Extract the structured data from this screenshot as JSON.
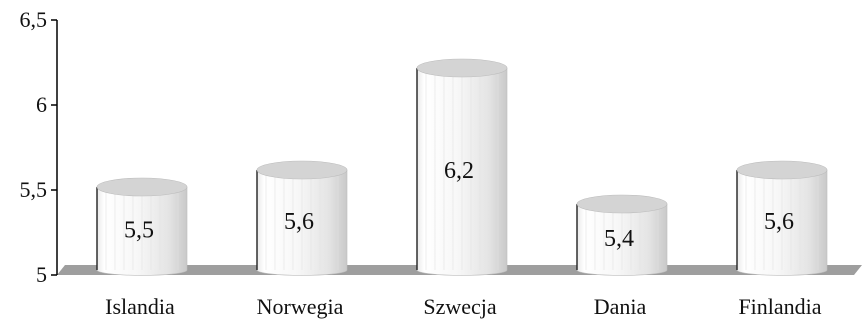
{
  "chart_data": {
    "type": "bar",
    "style": "3d-cylinder",
    "title": "",
    "xlabel": "",
    "ylabel": "",
    "categories": [
      "Islandia",
      "Norwegia",
      "Szwecja",
      "Dania",
      "Finlandia"
    ],
    "values": [
      5.5,
      5.6,
      6.2,
      5.4,
      5.6
    ],
    "value_labels": [
      "5,5",
      "5,6",
      "6,2",
      "5,4",
      "5,6"
    ],
    "ylim": [
      5,
      6.5
    ],
    "yticks": [
      5,
      5.5,
      6,
      6.5
    ],
    "ytick_labels": [
      "5",
      "5,5",
      "6",
      "6,5"
    ],
    "grid": false,
    "legend": "none",
    "colors": {
      "bar_fill_light": "#ffffff",
      "bar_fill_dark": "#cfcfcf",
      "bar_top": "#d4d4d4",
      "floor": "#9e9e9e",
      "axis": "#000000",
      "text": "#111111"
    }
  }
}
